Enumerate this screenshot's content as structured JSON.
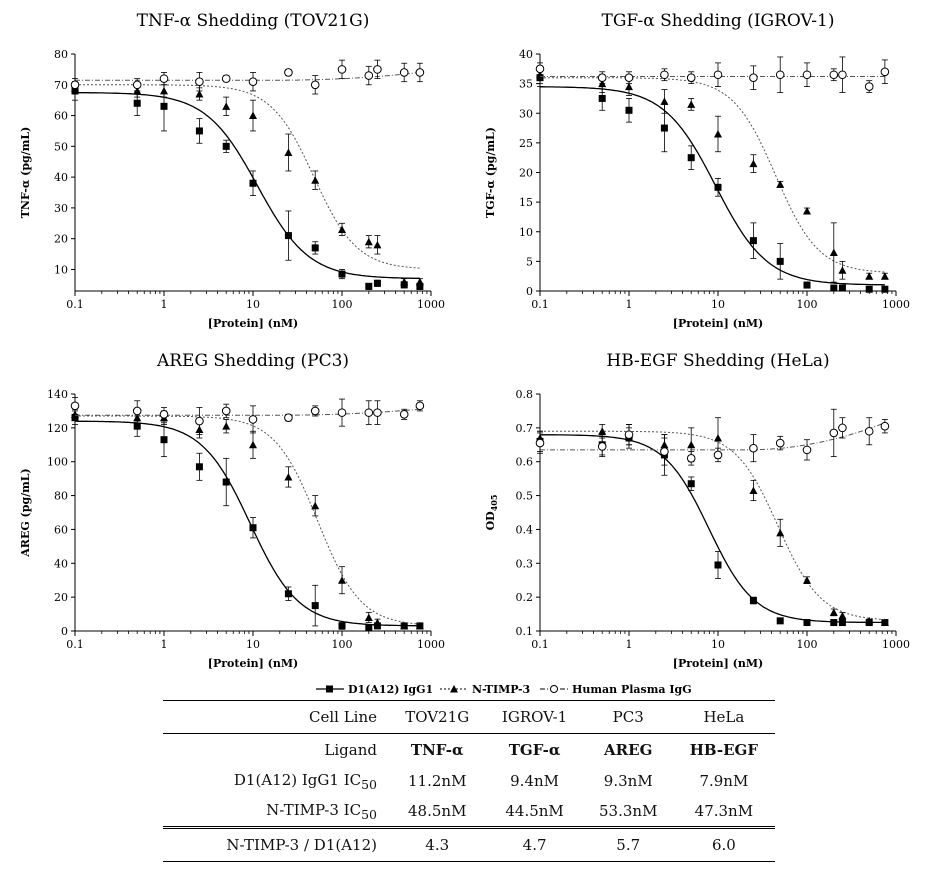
{
  "x_axis_ticks": [
    "0.1",
    "1",
    "10",
    "100",
    "1000"
  ],
  "legend": {
    "d1": "D1(A12) IgG1",
    "ntimp": "N-TIMP-3",
    "hpigg": "Human Plasma IgG"
  },
  "chart_data": [
    {
      "type": "scatter",
      "title": "TNF-α Shedding (TOV21G)",
      "xlabel": "[Protein] (nM)",
      "ylabel": "TNF-α (pg/mL)",
      "xscale": "log",
      "xlim": [
        0.1,
        1000
      ],
      "ylim": [
        3,
        80
      ],
      "yticks": [
        10,
        20,
        30,
        40,
        50,
        60,
        70,
        80
      ],
      "series": [
        {
          "name": "D1(A12) IgG1",
          "x": [
            0.1,
            0.5,
            1,
            2.5,
            5,
            10,
            25,
            50,
            100,
            200,
            250,
            500,
            750
          ],
          "y": [
            68,
            64,
            63,
            55,
            50,
            38,
            21,
            17,
            8.5,
            4.5,
            5.5,
            5,
            4.5
          ],
          "err": [
            3,
            4,
            8,
            4,
            2,
            4,
            8,
            2,
            1.5,
            1,
            1,
            1,
            1
          ],
          "fit": {
            "top": 67.5,
            "bottom": 7,
            "ic50": 11.2,
            "hill": 1.5
          }
        },
        {
          "name": "N-TIMP-3",
          "x": [
            0.1,
            0.5,
            1,
            2.5,
            5,
            10,
            25,
            50,
            100,
            200,
            250,
            500,
            750
          ],
          "y": [
            69,
            68,
            68,
            67,
            63,
            60,
            48,
            39,
            23,
            19,
            18,
            6,
            6
          ],
          "err": [
            2,
            2,
            2,
            2,
            3,
            5,
            6,
            3,
            2,
            2,
            3,
            1,
            1
          ],
          "fit": {
            "top": 70,
            "bottom": 10,
            "ic50": 48.5,
            "hill": 1.8
          }
        },
        {
          "name": "Human Plasma IgG",
          "x": [
            0.1,
            0.5,
            1,
            2.5,
            5,
            10,
            25,
            50,
            100,
            200,
            250,
            500,
            750
          ],
          "y": [
            70,
            70,
            72,
            71,
            72,
            71,
            74,
            70,
            75,
            73,
            75,
            74,
            74
          ],
          "err": [
            2,
            2,
            2,
            3,
            1,
            3,
            1,
            3,
            3,
            3,
            3,
            3,
            3
          ],
          "fit": {
            "flat": true,
            "a": 71.5,
            "b": 74
          }
        }
      ]
    },
    {
      "type": "scatter",
      "title": "TGF-α Shedding (IGROV-1)",
      "xlabel": "[Protein] (nM)",
      "ylabel": "TGF-α (pg/mL)",
      "xscale": "log",
      "xlim": [
        0.1,
        1000
      ],
      "ylim": [
        0,
        40
      ],
      "yticks": [
        0,
        5,
        10,
        15,
        20,
        25,
        30,
        35,
        40
      ],
      "series": [
        {
          "name": "D1(A12) IgG1",
          "x": [
            0.1,
            0.5,
            1,
            2.5,
            5,
            10,
            25,
            50,
            100,
            200,
            250,
            500,
            750
          ],
          "y": [
            36,
            32.5,
            30.5,
            27.5,
            22.5,
            17.5,
            8.5,
            5,
            1,
            0.5,
            0.5,
            0.3,
            0.3
          ],
          "err": [
            1.5,
            2,
            2,
            4,
            2,
            1.5,
            3,
            3,
            0.5,
            0.3,
            0.3,
            0.2,
            0.2
          ],
          "fit": {
            "top": 34.5,
            "bottom": 1,
            "ic50": 9.4,
            "hill": 1.5
          }
        },
        {
          "name": "N-TIMP-3",
          "x": [
            0.1,
            0.5,
            1,
            2.5,
            5,
            10,
            25,
            50,
            100,
            200,
            250,
            500,
            750
          ],
          "y": [
            36.5,
            35,
            34.5,
            32,
            31.5,
            26.5,
            21.5,
            18,
            13.5,
            6.5,
            3.5,
            2.5,
            2.5
          ],
          "err": [
            1.5,
            1.5,
            1.5,
            2,
            1,
            3,
            1.5,
            0.5,
            0.5,
            5,
            1.5,
            0.5,
            0.5
          ],
          "fit": {
            "top": 36,
            "bottom": 3,
            "ic50": 44.5,
            "hill": 1.8
          }
        },
        {
          "name": "Human Plasma IgG",
          "x": [
            0.1,
            0.5,
            1,
            2.5,
            5,
            10,
            25,
            50,
            100,
            200,
            250,
            500,
            750
          ],
          "y": [
            37.5,
            36,
            36,
            36.5,
            36,
            36.5,
            36,
            36.5,
            36.5,
            36.5,
            36.5,
            34.5,
            37
          ],
          "err": [
            1,
            1,
            1,
            1,
            1,
            2,
            2,
            3,
            2,
            1,
            3,
            1,
            2
          ],
          "fit": {
            "flat": true,
            "a": 36.2,
            "b": 36.2
          }
        }
      ]
    },
    {
      "type": "scatter",
      "title": "AREG Shedding (PC3)",
      "xlabel": "[Protein] (nM)",
      "ylabel": "AREG (pg/mL)",
      "xscale": "log",
      "xlim": [
        0.1,
        1000
      ],
      "ylim": [
        0,
        140
      ],
      "yticks": [
        0,
        20,
        40,
        60,
        80,
        100,
        120,
        140
      ],
      "series": [
        {
          "name": "D1(A12) IgG1",
          "x": [
            0.1,
            0.5,
            1,
            2.5,
            5,
            10,
            25,
            50,
            100,
            200,
            250,
            500,
            750
          ],
          "y": [
            126,
            121,
            113,
            97,
            88,
            61,
            22,
            15,
            3,
            2,
            3,
            3,
            3
          ],
          "err": [
            4,
            6,
            10,
            8,
            14,
            6,
            4,
            12,
            2,
            1,
            1,
            1,
            1
          ],
          "fit": {
            "top": 124,
            "bottom": 3,
            "ic50": 9.3,
            "hill": 1.6
          }
        },
        {
          "name": "N-TIMP-3",
          "x": [
            0.1,
            0.5,
            1,
            2.5,
            5,
            10,
            25,
            50,
            100,
            200,
            250,
            500,
            750
          ],
          "y": [
            128,
            126,
            126,
            119,
            121,
            110,
            91,
            74,
            30,
            8,
            5,
            3,
            3
          ],
          "err": [
            3,
            4,
            4,
            5,
            4,
            8,
            6,
            6,
            8,
            3,
            2,
            1,
            1
          ],
          "fit": {
            "top": 127,
            "bottom": 3,
            "ic50": 53.3,
            "hill": 1.8
          }
        },
        {
          "name": "Human Plasma IgG",
          "x": [
            0.1,
            0.5,
            1,
            2.5,
            5,
            10,
            25,
            50,
            100,
            200,
            250,
            500,
            750
          ],
          "y": [
            133,
            130,
            128,
            124,
            130,
            125,
            126,
            130,
            129,
            129,
            129,
            128,
            133
          ],
          "err": [
            5,
            6,
            4,
            8,
            4,
            8,
            2,
            3,
            8,
            7,
            7,
            3,
            3
          ],
          "fit": {
            "flat": true,
            "a": 127.5,
            "b": 131
          }
        }
      ]
    },
    {
      "type": "scatter",
      "title": "HB-EGF Shedding (HeLa)",
      "xlabel": "[Protein] (nM)",
      "ylabel": "OD405",
      "xscale": "log",
      "xlim": [
        0.1,
        1000
      ],
      "ylim": [
        0.1,
        0.8
      ],
      "yticks": [
        0.1,
        0.2,
        0.3,
        0.4,
        0.5,
        0.6,
        0.7,
        0.8
      ],
      "series": [
        {
          "name": "D1(A12) IgG1",
          "x": [
            0.1,
            0.5,
            1,
            2.5,
            5,
            10,
            25,
            50,
            100,
            200,
            250,
            500,
            750
          ],
          "y": [
            0.66,
            0.65,
            0.67,
            0.62,
            0.535,
            0.295,
            0.19,
            0.13,
            0.125,
            0.125,
            0.125,
            0.125,
            0.125
          ],
          "err": [
            0.03,
            0.03,
            0.03,
            0.06,
            0.02,
            0.04,
            0.01,
            0.005,
            0.005,
            0.005,
            0.005,
            0.005,
            0.005
          ],
          "fit": {
            "top": 0.68,
            "bottom": 0.125,
            "ic50": 7.9,
            "hill": 1.7
          }
        },
        {
          "name": "N-TIMP-3",
          "x": [
            0.1,
            0.5,
            1,
            2.5,
            5,
            10,
            25,
            50,
            100,
            200,
            250,
            500,
            750
          ],
          "y": [
            0.67,
            0.69,
            0.68,
            0.65,
            0.65,
            0.67,
            0.515,
            0.39,
            0.25,
            0.155,
            0.145,
            0.13,
            0.125
          ],
          "err": [
            0.02,
            0.02,
            0.03,
            0.03,
            0.05,
            0.06,
            0.03,
            0.04,
            0.01,
            0.01,
            0.01,
            0.005,
            0.005
          ],
          "fit": {
            "top": 0.69,
            "bottom": 0.13,
            "ic50": 47.3,
            "hill": 1.8
          }
        },
        {
          "name": "Human Plasma IgG",
          "x": [
            0.1,
            0.5,
            1,
            2.5,
            5,
            10,
            25,
            50,
            100,
            200,
            250,
            500,
            750
          ],
          "y": [
            0.655,
            0.645,
            0.68,
            0.63,
            0.61,
            0.62,
            0.64,
            0.655,
            0.635,
            0.685,
            0.7,
            0.69,
            0.705
          ],
          "err": [
            0.03,
            0.03,
            0.03,
            0.04,
            0.02,
            0.02,
            0.04,
            0.02,
            0.03,
            0.07,
            0.03,
            0.04,
            0.02
          ],
          "fit": {
            "flat": true,
            "a": 0.635,
            "b": 0.715
          }
        }
      ]
    },
    {
      "type": "table",
      "rows": [
        [
          "Cell Line",
          "TOV21G",
          "IGROV-1",
          "PC3",
          "HeLa"
        ],
        [
          "Ligand",
          "TNF-α",
          "TGF-α",
          "AREG",
          "HB-EGF"
        ],
        [
          "D1(A12) IgG1 IC50",
          "11.2nM",
          "9.4nM",
          "9.3nM",
          "7.9nM"
        ],
        [
          "N-TIMP-3 IC50",
          "48.5nM",
          "44.5nM",
          "53.3nM",
          "47.3nM"
        ],
        [
          "N-TIMP-3 / D1(A12)",
          "4.3",
          "4.7",
          "5.7",
          "6.0"
        ]
      ]
    }
  ]
}
